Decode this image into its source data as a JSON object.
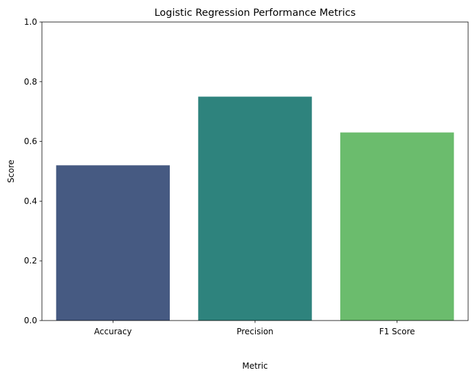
{
  "chart_data": {
    "type": "bar",
    "title": "Logistic Regression Performance Metrics",
    "xlabel": "Metric",
    "ylabel": "Score",
    "categories": [
      "Accuracy",
      "Precision",
      "F1 Score"
    ],
    "values": [
      0.52,
      0.75,
      0.63
    ],
    "colors": [
      "#465a82",
      "#2e837d",
      "#6bbc6d"
    ],
    "ylim": [
      0,
      1
    ],
    "yticks": [
      0.0,
      0.2,
      0.4,
      0.6,
      0.8,
      1.0
    ],
    "ytick_labels": [
      "0.0",
      "0.2",
      "0.4",
      "0.6",
      "0.8",
      "1.0"
    ],
    "grid": false,
    "legend": "none"
  }
}
